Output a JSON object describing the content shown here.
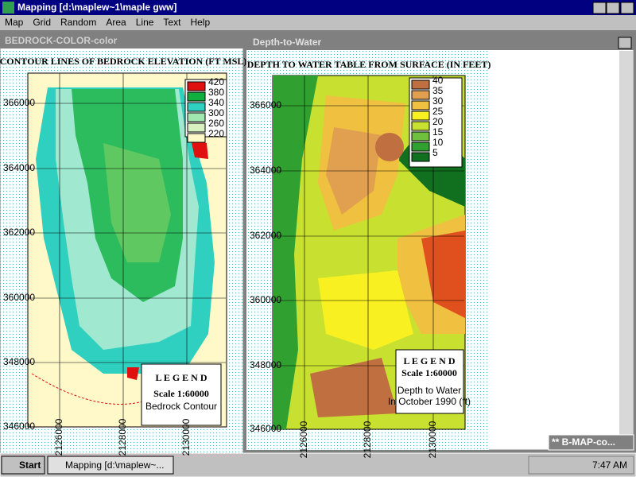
{
  "app": {
    "title": "Mapping [d:\\maplew~1\\maple gww]",
    "menu": [
      "Map",
      "Grid",
      "Random",
      "Area",
      "Line",
      "Text",
      "Help"
    ]
  },
  "windows": [
    {
      "title": "BEDROCK-COLOR-color",
      "map_title": "CONTOUR LINES OF BEDROCK ELEVATION (FT MSL)",
      "scale_values": [
        420,
        380,
        340,
        300,
        260,
        220
      ],
      "scale_colors": [
        "#e01010",
        "#10b040",
        "#30d0c0",
        "#a0e8b0",
        "#d8f0c0",
        "#fff8c8"
      ],
      "y_labels": [
        366000,
        364000,
        362000,
        360000,
        348000,
        346000
      ],
      "x_labels": [
        2126000,
        2128000,
        2130000
      ],
      "legend": {
        "heading": "L E G E N D",
        "scale": "Scale 1:60000",
        "items": [
          "Bedrock Contour"
        ]
      }
    },
    {
      "title": "Depth-to-Water",
      "map_title": "DEPTH TO WATER TABLE FROM SURFACE (IN FEET)",
      "scale_values": [
        40,
        35,
        30,
        25,
        20,
        15,
        10,
        5
      ],
      "scale_colors": [
        "#c07040",
        "#e0a050",
        "#f0c040",
        "#f8f020",
        "#c8e030",
        "#70c040",
        "#30a030",
        "#107020"
      ],
      "y_labels": [
        366000,
        364000,
        362000,
        360000,
        348000,
        346000
      ],
      "x_labels": [
        2126000,
        2128000,
        2130000
      ],
      "legend": {
        "heading": "L E G E N D",
        "scale": "Scale 1:60000",
        "items": [
          "Depth to Water",
          "In October 1990 (ft)"
        ]
      }
    }
  ],
  "minimized": "** B-MAP-co...",
  "taskbar": {
    "start": "Start",
    "task": "Mapping [d:\\maplew~...",
    "clock": "7:47 AM"
  }
}
